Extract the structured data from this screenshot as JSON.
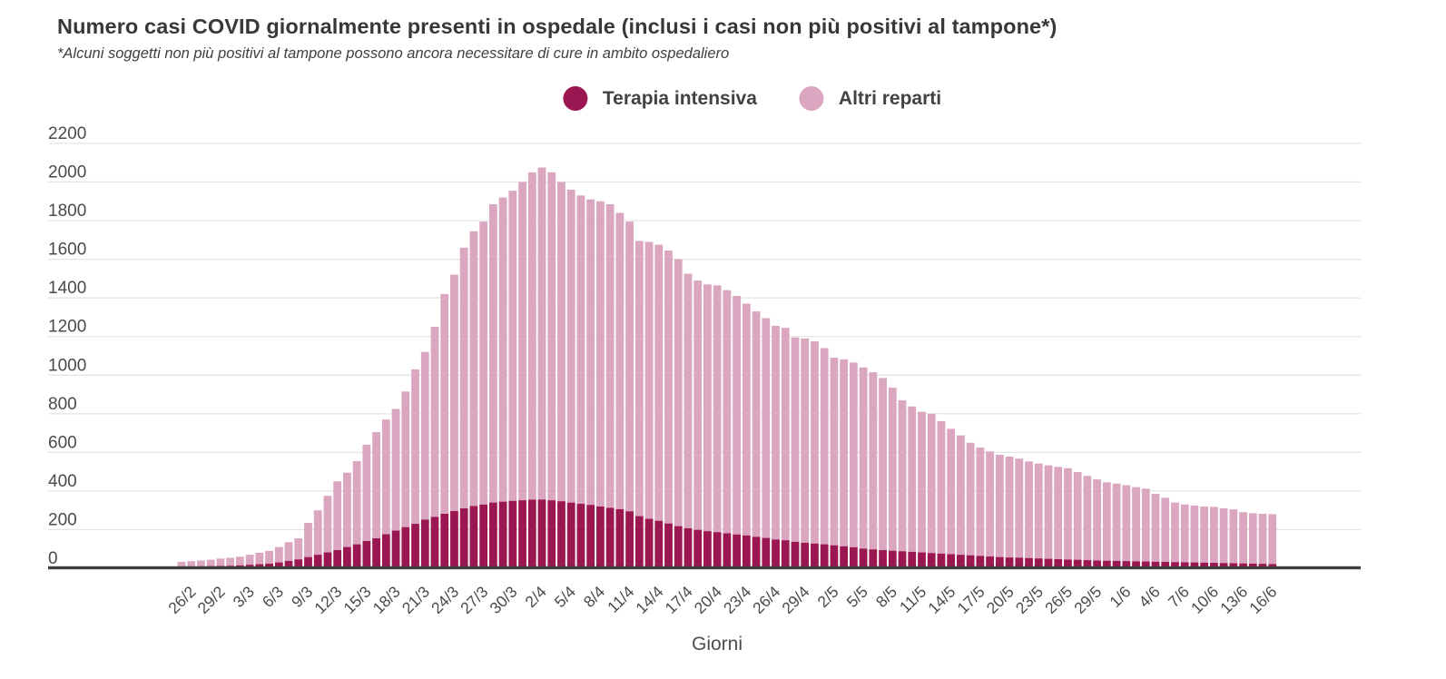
{
  "chart_data": {
    "type": "bar",
    "stacked": true,
    "title": "Numero casi COVID giornalmente presenti in ospedale (inclusi i casi non più positivi al tampone*)",
    "subtitle": "*Alcuni soggetti non più positivi al tampone possono ancora necessitare di cure in ambito ospedaliero",
    "xlabel": "Giorni",
    "ylabel": "",
    "ylim": [
      0,
      2200
    ],
    "ytick_step": 200,
    "grid": "horizontal",
    "legend_position": "top-center",
    "categories": [
      "25/2",
      "26/2",
      "27/2",
      "28/2",
      "29/2",
      "1/3",
      "2/3",
      "3/3",
      "4/3",
      "5/3",
      "6/3",
      "7/3",
      "8/3",
      "9/3",
      "10/3",
      "11/3",
      "12/3",
      "13/3",
      "14/3",
      "15/3",
      "16/3",
      "17/3",
      "18/3",
      "19/3",
      "20/3",
      "21/3",
      "22/3",
      "23/3",
      "24/3",
      "25/3",
      "26/3",
      "27/3",
      "28/3",
      "29/3",
      "30/3",
      "31/3",
      "1/4",
      "2/4",
      "3/4",
      "4/4",
      "5/4",
      "6/4",
      "7/4",
      "8/4",
      "9/4",
      "10/4",
      "11/4",
      "12/4",
      "13/4",
      "14/4",
      "15/4",
      "16/4",
      "17/4",
      "18/4",
      "19/4",
      "20/4",
      "21/4",
      "22/4",
      "23/4",
      "24/4",
      "25/4",
      "26/4",
      "27/4",
      "28/4",
      "29/4",
      "30/4",
      "1/5",
      "2/5",
      "3/5",
      "4/5",
      "5/5",
      "6/5",
      "7/5",
      "8/5",
      "9/5",
      "10/5",
      "11/5",
      "12/5",
      "13/5",
      "14/5",
      "15/5",
      "16/5",
      "17/5",
      "18/5",
      "19/5",
      "20/5",
      "21/5",
      "22/5",
      "23/5",
      "24/5",
      "25/5",
      "26/5",
      "27/5",
      "28/5",
      "29/5",
      "30/5",
      "31/5",
      "1/6",
      "2/6",
      "3/6",
      "4/6",
      "5/6",
      "6/6",
      "7/6",
      "8/6",
      "9/6",
      "10/6",
      "11/6",
      "12/6",
      "13/6",
      "14/6",
      "15/6",
      "16/6"
    ],
    "shown_tick_labels": [
      "26/2",
      "29/2",
      "3/3",
      "6/3",
      "9/3",
      "12/3",
      "15/3",
      "18/3",
      "21/3",
      "24/3",
      "27/3",
      "30/3",
      "2/4",
      "5/4",
      "8/4",
      "11/4",
      "14/4",
      "17/4",
      "20/4",
      "23/4",
      "26/4",
      "29/4",
      "2/5",
      "5/5",
      "8/5",
      "11/5",
      "14/5",
      "17/5",
      "20/5",
      "23/5",
      "26/5",
      "29/5",
      "1/6",
      "4/6",
      "7/6",
      "10/6",
      "13/6",
      "16/6"
    ],
    "tick_start_index": 1,
    "tick_every": 3,
    "series": [
      {
        "name": "Terapia intensiva",
        "color": "#9b1751",
        "values": [
          8,
          9,
          10,
          11,
          12,
          13,
          15,
          18,
          21,
          24,
          30,
          38,
          46,
          58,
          70,
          82,
          94,
          110,
          124,
          141,
          155,
          176,
          195,
          213,
          230,
          252,
          266,
          282,
          296,
          310,
          322,
          330,
          340,
          345,
          349,
          352,
          355,
          356,
          352,
          347,
          340,
          334,
          328,
          320,
          313,
          306,
          295,
          270,
          256,
          246,
          232,
          218,
          207,
          199,
          192,
          187,
          181,
          175,
          170,
          163,
          157,
          149,
          145,
          137,
          132,
          128,
          124,
          119,
          114,
          109,
          102,
          98,
          94,
          91,
          88,
          85,
          82,
          79,
          76,
          73,
          70,
          67,
          64,
          61,
          58,
          56,
          55,
          53,
          51,
          49,
          47,
          45,
          44,
          42,
          40,
          39,
          38,
          37,
          36,
          35,
          34,
          33,
          32,
          31,
          30,
          29,
          28,
          27,
          26,
          25,
          24,
          23,
          22
        ]
      },
      {
        "name": "Altri reparti",
        "color": "#dba6bf",
        "values": [
          25,
          28,
          30,
          33,
          38,
          41,
          45,
          52,
          59,
          66,
          80,
          97,
          109,
          177,
          230,
          293,
          356,
          385,
          431,
          499,
          550,
          594,
          630,
          702,
          800,
          868,
          984,
          1138,
          1224,
          1350,
          1423,
          1465,
          1545,
          1575,
          1606,
          1648,
          1695,
          1719,
          1698,
          1653,
          1620,
          1596,
          1582,
          1580,
          1572,
          1534,
          1500,
          1425,
          1434,
          1429,
          1413,
          1382,
          1318,
          1291,
          1278,
          1278,
          1259,
          1235,
          1200,
          1167,
          1138,
          1106,
          1100,
          1058,
          1058,
          1047,
          1016,
          971,
          968,
          956,
          938,
          917,
          891,
          844,
          782,
          753,
          728,
          721,
          686,
          649,
          618,
          583,
          561,
          544,
          530,
          522,
          513,
          500,
          491,
          484,
          478,
          473,
          454,
          436,
          420,
          406,
          400,
          393,
          384,
          377,
          351,
          332,
          308,
          299,
          295,
          291,
          290,
          283,
          279,
          265,
          261,
          259,
          258
        ]
      }
    ],
    "colors": {
      "background": "#ffffff",
      "gridline": "#e3e3e3",
      "axis_line": "#3f3f3f",
      "tick_text": "#4a4a4a",
      "title_text": "#383838"
    }
  }
}
